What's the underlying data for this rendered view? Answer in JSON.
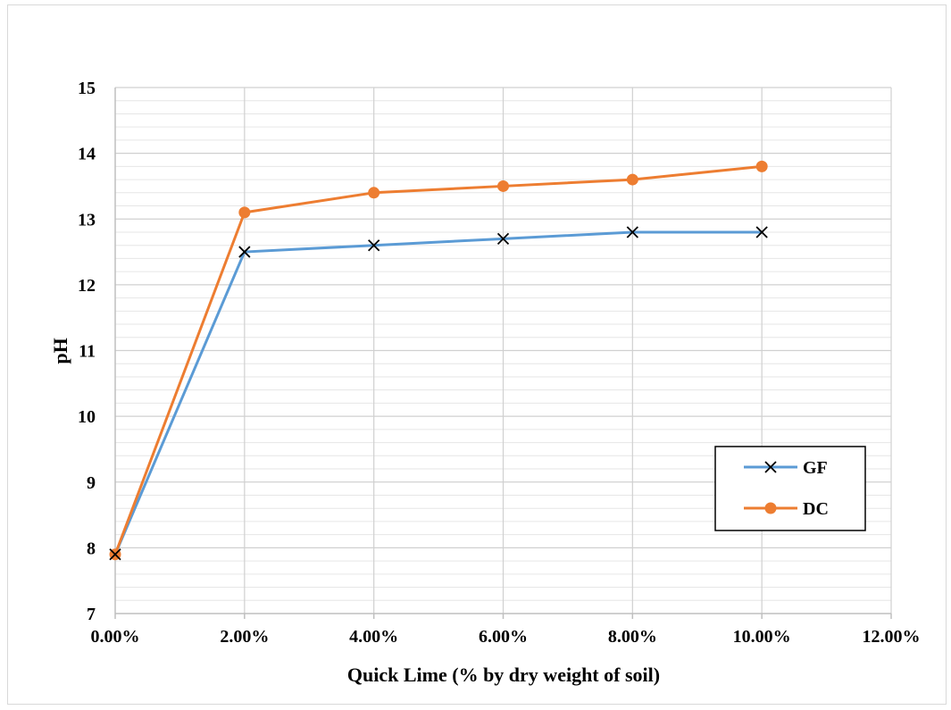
{
  "chart_data": {
    "type": "line",
    "xlabel": "Quick Lime (% by dry weight of soil)",
    "ylabel": "pH",
    "xlim": [
      0,
      12
    ],
    "ylim": [
      7,
      15
    ],
    "x_tick_labels": [
      "0.00%",
      "2.00%",
      "4.00%",
      "6.00%",
      "8.00%",
      "10.00%",
      "12.00%"
    ],
    "y_tick_labels": [
      "7",
      "8",
      "9",
      "10",
      "11",
      "12",
      "13",
      "14",
      "15"
    ],
    "x_major_step": 2,
    "y_major_step": 1,
    "y_minor_step": 0.2,
    "grid": true,
    "legend_position": "right",
    "x": [
      0,
      2,
      4,
      6,
      8,
      10
    ],
    "series": [
      {
        "name": "GF",
        "values": [
          7.9,
          12.5,
          12.6,
          12.7,
          12.8,
          12.8
        ],
        "color": "#5b9bd5",
        "marker": "x",
        "marker_color": "#000000"
      },
      {
        "name": "DC",
        "values": [
          7.9,
          13.1,
          13.4,
          13.5,
          13.6,
          13.8
        ],
        "color": "#ed7d31",
        "marker": "circle",
        "marker_color": "#ed7d31"
      }
    ]
  }
}
